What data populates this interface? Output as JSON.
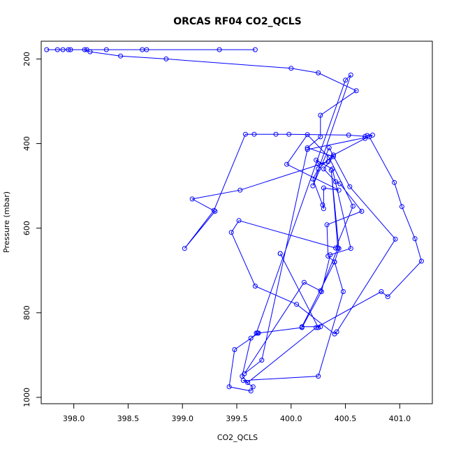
{
  "chart_data": {
    "type": "line",
    "title": "ORCAS RF04 CO2_QCLS",
    "xlabel": "CO2_QCLS",
    "ylabel": "Pressure (mbar)",
    "xlim": [
      397.7,
      401.3
    ],
    "ylim": [
      158,
      1015
    ],
    "y_reversed": true,
    "x_ticks": [
      398.0,
      398.5,
      399.0,
      399.5,
      400.0,
      400.5,
      401.0
    ],
    "x_tick_labels": [
      "398.0",
      "398.5",
      "399.0",
      "399.5",
      "400.0",
      "400.5",
      "401.0"
    ],
    "y_ticks": [
      200,
      400,
      600,
      800,
      1000
    ],
    "y_tick_labels": [
      "200",
      "400",
      "600",
      "800",
      "1000"
    ],
    "grid": false,
    "series": [
      {
        "color": "#0000ff",
        "marker": "open-circle",
        "points": [
          [
            397.75,
            178
          ],
          [
            397.85,
            178
          ],
          [
            397.97,
            178
          ],
          [
            398.12,
            178
          ],
          [
            398.3,
            178
          ],
          [
            398.63,
            178
          ],
          [
            398.67,
            178
          ],
          [
            399.34,
            178
          ],
          [
            399.67,
            178
          ],
          [
            397.9,
            178
          ],
          [
            397.95,
            178
          ],
          [
            398.1,
            178
          ],
          [
            398.15,
            183
          ],
          [
            398.43,
            193
          ],
          [
            398.85,
            200
          ],
          [
            400.0,
            222
          ],
          [
            400.25,
            233
          ],
          [
            400.6,
            275
          ],
          [
            400.27,
            333
          ],
          [
            400.27,
            384
          ],
          [
            400.15,
            410
          ],
          [
            400.39,
            431
          ],
          [
            400.3,
            460
          ],
          [
            400.41,
            490
          ],
          [
            400.45,
            495
          ],
          [
            400.65,
            560
          ],
          [
            400.33,
            592
          ],
          [
            400.34,
            666
          ],
          [
            400.4,
            680
          ],
          [
            400.48,
            750
          ],
          [
            400.25,
            950
          ],
          [
            399.56,
            960
          ],
          [
            399.65,
            975
          ],
          [
            399.63,
            985
          ],
          [
            399.43,
            975
          ],
          [
            399.48,
            887
          ],
          [
            399.7,
            848
          ],
          [
            400.1,
            835
          ],
          [
            400.28,
            750
          ],
          [
            400.36,
            663
          ],
          [
            400.55,
            648
          ],
          [
            400.38,
            460
          ],
          [
            400.23,
            439
          ],
          [
            400.25,
            448
          ],
          [
            400.34,
            443
          ],
          [
            399.53,
            510
          ],
          [
            399.09,
            531
          ],
          [
            399.3,
            560
          ],
          [
            399.02,
            648
          ],
          [
            399.29,
            558
          ],
          [
            399.58,
            378
          ],
          [
            399.66,
            378
          ],
          [
            399.86,
            378
          ],
          [
            399.98,
            378
          ],
          [
            400.53,
            380
          ],
          [
            400.68,
            383
          ],
          [
            400.7,
            381
          ],
          [
            400.75,
            380
          ],
          [
            400.68,
            388
          ],
          [
            400.39,
            427
          ],
          [
            400.25,
            460
          ],
          [
            400.2,
            484
          ],
          [
            400.29,
            545
          ],
          [
            400.3,
            554
          ],
          [
            400.3,
            505
          ],
          [
            400.44,
            510
          ],
          [
            399.96,
            449
          ],
          [
            400.15,
            379
          ],
          [
            400.35,
            433
          ],
          [
            400.57,
            548
          ],
          [
            400.41,
            647
          ],
          [
            399.52,
            582
          ],
          [
            399.45,
            610
          ],
          [
            399.67,
            737
          ],
          [
            400.05,
            780
          ],
          [
            400.4,
            850
          ],
          [
            400.42,
            845
          ],
          [
            400.96,
            626
          ],
          [
            400.54,
            502
          ],
          [
            400.35,
            410
          ],
          [
            400.2,
            500
          ],
          [
            400.55,
            238
          ],
          [
            400.5,
            250
          ],
          [
            399.68,
            848
          ],
          [
            399.69,
            848
          ],
          [
            399.63,
            860
          ],
          [
            399.55,
            950
          ],
          [
            399.6,
            965
          ],
          [
            400.23,
            835
          ],
          [
            400.83,
            750
          ],
          [
            400.89,
            762
          ],
          [
            401.2,
            678
          ],
          [
            401.14,
            625
          ],
          [
            401.02,
            549
          ],
          [
            400.95,
            492
          ],
          [
            400.72,
            384
          ],
          [
            400.15,
            414
          ],
          [
            399.73,
            912
          ],
          [
            399.57,
            944
          ],
          [
            400.12,
            728
          ],
          [
            400.27,
            748
          ],
          [
            400.43,
            647
          ],
          [
            400.37,
            463
          ],
          [
            400.44,
            648
          ],
          [
            400.4,
            680
          ],
          [
            400.1,
            833
          ],
          [
            400.27,
            833
          ],
          [
            400.25,
            835
          ],
          [
            399.9,
            660
          ],
          [
            399.9,
            660
          ]
        ]
      }
    ]
  }
}
